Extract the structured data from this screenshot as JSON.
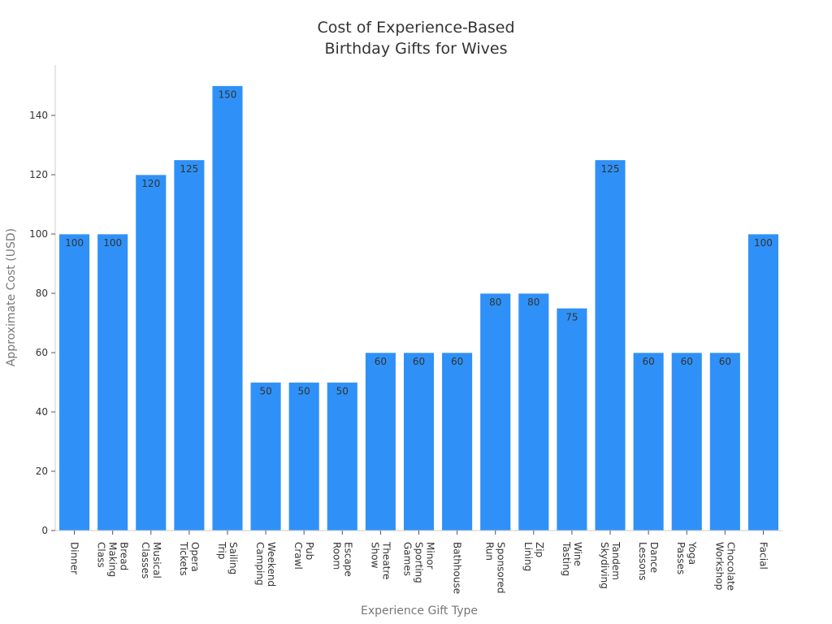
{
  "chart_data": {
    "type": "bar",
    "title_lines": [
      "Cost of Experience-Based",
      "Birthday Gifts for Wives"
    ],
    "xlabel": "Experience Gift Type",
    "ylabel": "Approximate Cost (USD)",
    "ylim": [
      0,
      157
    ],
    "yticks": [
      0,
      20,
      40,
      60,
      80,
      100,
      120,
      140
    ],
    "grid": false,
    "legend": "none",
    "bar_color": "#2f91f7",
    "categories": [
      "Dinner",
      "Bread Making Class",
      "Musical Classes",
      "Opera Tickets",
      "Sailing Trip",
      "Weekend Camping",
      "Pub Crawl",
      "Escape Room",
      "Theatre Show",
      "Minor Sporting Games",
      "Bathhouse",
      "Sponsored Run",
      "Zip Lining",
      "Wine Tasting",
      "Tandem Skydiving",
      "Dance Lessons",
      "Yoga Passes",
      "Chocolate Workshop",
      "Facial"
    ],
    "category_label_lines": [
      [
        "Dinner"
      ],
      [
        "Bread",
        "Making",
        "Class"
      ],
      [
        "Musical",
        "Classes"
      ],
      [
        "Opera",
        "Tickets"
      ],
      [
        "Sailing",
        "Trip"
      ],
      [
        "Weekend",
        "Camping"
      ],
      [
        "Pub",
        "Crawl"
      ],
      [
        "Escape",
        "Room"
      ],
      [
        "Theatre",
        "Show"
      ],
      [
        "Minor",
        "Sporting",
        "Games"
      ],
      [
        "Bathhouse"
      ],
      [
        "Sponsored",
        "Run"
      ],
      [
        "Zip",
        "Lining"
      ],
      [
        "Wine",
        "Tasting"
      ],
      [
        "Tandem",
        "Skydiving"
      ],
      [
        "Dance",
        "Lessons"
      ],
      [
        "Yoga",
        "Passes"
      ],
      [
        "Chocolate",
        "Workshop"
      ],
      [
        "Facial"
      ]
    ],
    "values": [
      100,
      100,
      120,
      125,
      150,
      50,
      50,
      50,
      60,
      60,
      60,
      80,
      80,
      75,
      125,
      60,
      60,
      60,
      100
    ]
  }
}
